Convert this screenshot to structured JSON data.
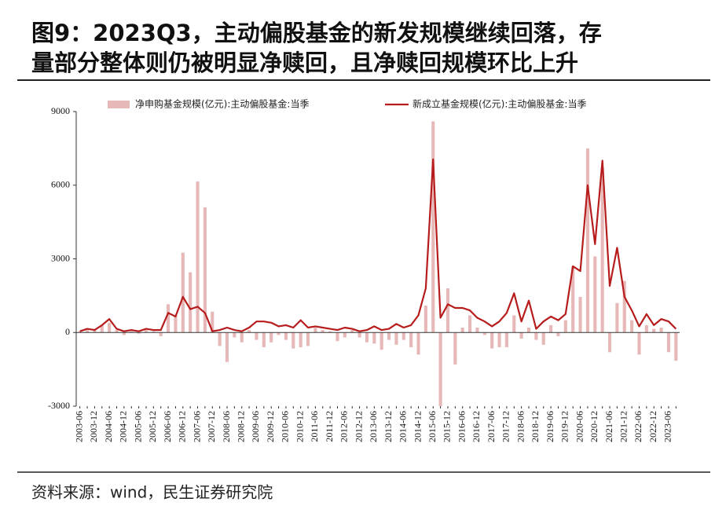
{
  "chart_data": {
    "type": "bar-line",
    "title_lines": [
      "图9：2023Q3，主动偏股基金的新发规模继续回落，存",
      "量部分整体则仍被明显净赎回，且净赎回规模环比上升"
    ],
    "source": "资料来源：wind，民生证券研究院",
    "categories": [
      "2003-06",
      null,
      "2003-12",
      null,
      "2004-06",
      null,
      "2004-12",
      null,
      "2005-06",
      null,
      "2005-12",
      null,
      "2006-06",
      null,
      "2006-12",
      null,
      "2007-06",
      null,
      "2007-12",
      null,
      "2008-06",
      null,
      "2008-12",
      null,
      "2009-06",
      null,
      "2009-12",
      null,
      "2010-06",
      null,
      "2010-12",
      null,
      "2011-06",
      null,
      "2011-12",
      null,
      "2012-06",
      null,
      "2012-12",
      null,
      "2013-06",
      null,
      "2013-12",
      null,
      "2014-06",
      null,
      "2014-12",
      null,
      "2015-06",
      null,
      "2015-12",
      null,
      "2016-06",
      null,
      "2016-12",
      null,
      "2017-06",
      null,
      "2017-12",
      null,
      "2018-06",
      null,
      "2018-12",
      null,
      "2019-06",
      null,
      "2019-12",
      null,
      "2020-06",
      null,
      "2020-12",
      null,
      "2021-06",
      null,
      "2021-12",
      null,
      "2022-06",
      null,
      "2022-12",
      null,
      "2023-06",
      null
    ],
    "series": [
      {
        "name": "净申购基金规模(亿元):主动偏股基金:当季",
        "kind": "bar",
        "color": "#e6b8b7",
        "values": [
          50,
          100,
          150,
          300,
          400,
          100,
          -100,
          50,
          -50,
          100,
          50,
          -150,
          1150,
          700,
          3250,
          2450,
          6150,
          5100,
          850,
          -550,
          -1200,
          -200,
          -400,
          100,
          -300,
          -600,
          -400,
          -100,
          -300,
          -650,
          -600,
          -550,
          200,
          100,
          50,
          -350,
          -200,
          100,
          -200,
          -400,
          -450,
          -700,
          -300,
          -500,
          -300,
          -600,
          -900,
          1100,
          8600,
          -3000,
          1800,
          -1300,
          200,
          700,
          200,
          -100,
          -650,
          -600,
          -600,
          700,
          -250,
          200,
          -300,
          -500,
          300,
          -150,
          500,
          2700,
          1450,
          7500,
          3100,
          6700,
          -800,
          1200,
          2100,
          500,
          -900,
          300,
          150,
          200,
          -800,
          -1150
        ]
      },
      {
        "name": "新成立基金规模(亿元):主动偏股基金:当季",
        "kind": "line",
        "color": "#b71c1c",
        "values": [
          50,
          150,
          100,
          300,
          550,
          150,
          50,
          100,
          50,
          150,
          100,
          100,
          800,
          650,
          1450,
          950,
          1050,
          800,
          50,
          100,
          200,
          100,
          50,
          200,
          450,
          450,
          400,
          250,
          300,
          200,
          500,
          200,
          250,
          200,
          150,
          100,
          200,
          150,
          50,
          100,
          250,
          100,
          150,
          350,
          200,
          300,
          700,
          1800,
          7050,
          600,
          1150,
          1000,
          1000,
          900,
          600,
          450,
          250,
          450,
          800,
          1600,
          450,
          1300,
          150,
          450,
          650,
          500,
          750,
          2700,
          2500,
          6000,
          3600,
          7000,
          1900,
          3450,
          1450,
          900,
          250,
          750,
          300,
          550,
          450,
          150
        ]
      }
    ],
    "ylim": [
      -3000,
      9000
    ],
    "yticks": [
      -3000,
      0,
      3000,
      6000,
      9000
    ]
  }
}
